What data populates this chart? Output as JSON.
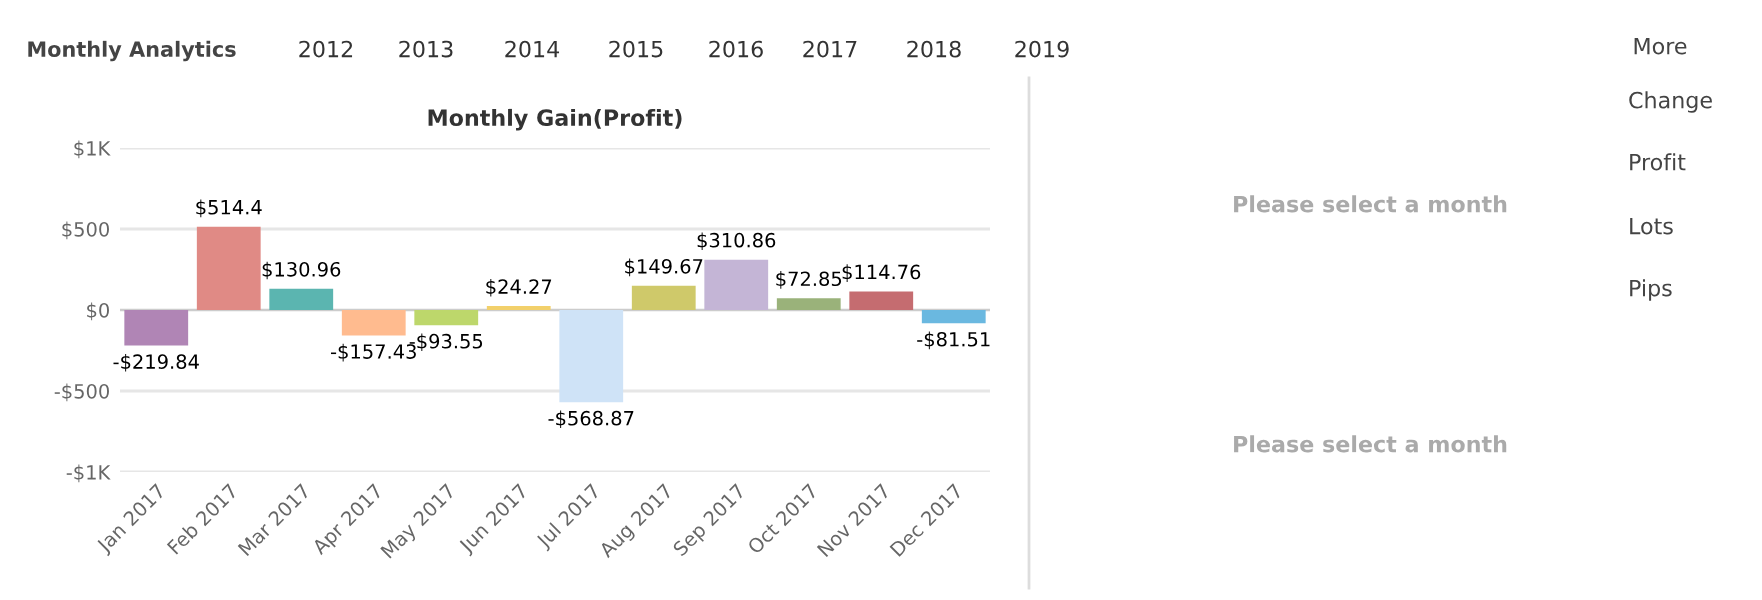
{
  "chart_data": {
    "type": "bar",
    "title": "Monthly Gain(Profit)",
    "categories": [
      "Jan 2017",
      "Feb 2017",
      "Mar 2017",
      "Apr 2017",
      "May 2017",
      "Jun 2017",
      "Jul 2017",
      "Aug 2017",
      "Sep 2017",
      "Oct 2017",
      "Nov 2017",
      "Dec 2017"
    ],
    "values": [
      -219.84,
      514.4,
      130.96,
      -157.43,
      -93.55,
      24.27,
      -568.87,
      149.67,
      310.86,
      72.85,
      114.76,
      -81.51
    ],
    "value_labels": [
      "-$219.84",
      "$514.4",
      "$130.96",
      "-$157.43",
      "-$93.55",
      "$24.27",
      "-$568.87",
      "$149.67",
      "$310.86",
      "$72.85",
      "$114.76",
      "-$81.51"
    ],
    "colors": [
      "#b085b5",
      "#e08a85",
      "#5bb5b0",
      "#ffbb8f",
      "#bdd76b",
      "#f2d06b",
      "#cfe3f7",
      "#cfc96a",
      "#c4b5d6",
      "#9ab27a",
      "#c56c70",
      "#6ab8e0"
    ],
    "ylim": [
      -1000,
      1000
    ],
    "yticks": [
      {
        "value": -1000,
        "label": "-$1K"
      },
      {
        "value": -500,
        "label": "-$500"
      },
      {
        "value": 0,
        "label": "$0"
      },
      {
        "value": 500,
        "label": "$500"
      },
      {
        "value": 1000,
        "label": "$1K"
      }
    ],
    "grid": "y",
    "annotations": [
      "Monthly Analytics",
      "2012",
      "2013",
      "2014",
      "2015",
      "2016",
      "2017",
      "2018",
      "2019",
      "More",
      "Change",
      "Profit",
      "Lots",
      "Pips",
      "Please select a month",
      "Please select a month"
    ]
  }
}
